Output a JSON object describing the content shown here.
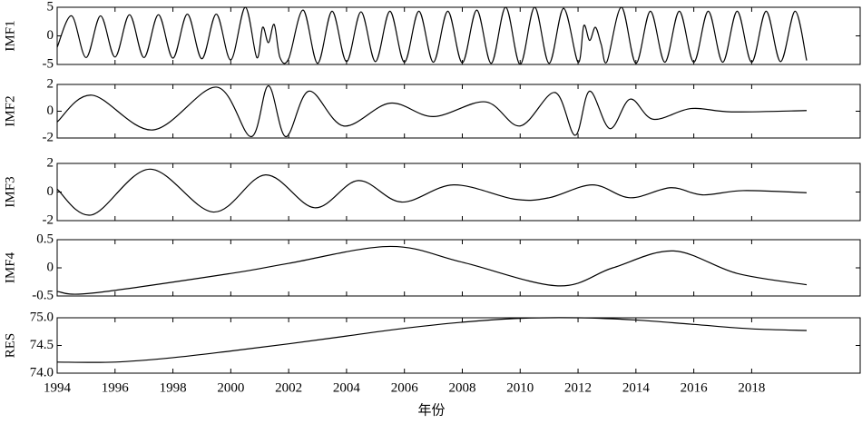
{
  "chart_data": [
    {
      "type": "line",
      "ylabel": "IMF1",
      "ylim": [
        -5,
        5
      ],
      "yticks": [
        -5,
        0,
        5
      ],
      "x": [
        1994,
        1994.5,
        1995,
        1995.5,
        1996,
        1996.5,
        1997,
        1997.5,
        1998,
        1998.5,
        1999,
        1999.5,
        2000,
        2000.5,
        2000.9,
        2001.1,
        2001.3,
        2001.5,
        2001.7,
        2002,
        2002.5,
        2003,
        2003.5,
        2004,
        2004.5,
        2005,
        2005.5,
        2006,
        2006.5,
        2007,
        2007.5,
        2008,
        2008.5,
        2009,
        2009.5,
        2010,
        2010.5,
        2011,
        2011.5,
        2012,
        2012.2,
        2012.4,
        2012.6,
        2012.8,
        2013,
        2013.5,
        2014,
        2014.5,
        2015,
        2015.5,
        2016,
        2016.5,
        2017,
        2017.5,
        2018,
        2018.5,
        2019,
        2019.5,
        2019.9
      ],
      "values": [
        -2,
        3.5,
        -3.8,
        3.5,
        -3.7,
        3.7,
        -3.8,
        3.7,
        -3.9,
        3.8,
        -4,
        3.8,
        -4.2,
        5,
        -3.8,
        1.5,
        -1.2,
        2,
        -3.8,
        -4,
        4.5,
        -4.8,
        4.3,
        -4.5,
        4.2,
        -4.5,
        4.3,
        -4.6,
        4.3,
        -4.6,
        4.3,
        -4.7,
        4.5,
        -4.8,
        5,
        -5,
        5,
        -4.8,
        4.8,
        -4.6,
        1.8,
        -0.8,
        1.5,
        -1.5,
        -4.5,
        5,
        -4.8,
        4.3,
        -4.6,
        4.3,
        -4.6,
        4.3,
        -4.6,
        4.3,
        -4.6,
        4.3,
        -4.5,
        4.3,
        -4.3
      ]
    },
    {
      "type": "line",
      "ylabel": "IMF2",
      "ylim": [
        -2,
        2
      ],
      "yticks": [
        -2,
        0,
        2
      ],
      "x": [
        1994,
        1995.2,
        1997.3,
        1999.5,
        2000.7,
        2001.3,
        2001.9,
        2002.7,
        2003.9,
        2005.5,
        2007,
        2008.8,
        2010,
        2011.2,
        2011.9,
        2012.4,
        2013.1,
        2013.8,
        2014.6,
        2015.9,
        2017.3,
        2019.9
      ],
      "values": [
        -0.8,
        1.2,
        -1.4,
        1.8,
        -1.9,
        1.9,
        -1.9,
        1.5,
        -1.1,
        0.6,
        -0.4,
        0.7,
        -1.1,
        1.4,
        -1.8,
        1.5,
        -1.3,
        0.9,
        -0.6,
        0.2,
        -0.05,
        0.05
      ]
    },
    {
      "type": "line",
      "ylabel": "IMF3",
      "ylim": [
        -2,
        2
      ],
      "yticks": [
        -2,
        0,
        2
      ],
      "x": [
        1994,
        1995.2,
        1997.2,
        1999.4,
        2001.2,
        2002.9,
        2004.4,
        2005.9,
        2007.7,
        2009.8,
        2011,
        2012.5,
        2013.8,
        2015.2,
        2016.3,
        2017.7,
        2019.9
      ],
      "values": [
        0.2,
        -1.6,
        1.6,
        -1.4,
        1.2,
        -1.1,
        0.8,
        -0.7,
        0.5,
        -0.5,
        -0.4,
        0.5,
        -0.4,
        0.3,
        -0.2,
        0.1,
        -0.05
      ]
    },
    {
      "type": "line",
      "ylabel": "IMF4",
      "ylim": [
        -0.5,
        0.5
      ],
      "yticks": [
        -0.5,
        0,
        0.5
      ],
      "x": [
        1994,
        1995.2,
        2000,
        2002,
        2005.5,
        2008,
        2011.3,
        2013.2,
        2015.3,
        2017.5,
        2019.9
      ],
      "values": [
        -0.42,
        -0.45,
        -0.1,
        0.08,
        0.38,
        0.1,
        -0.32,
        0,
        0.3,
        -0.1,
        -0.3
      ]
    },
    {
      "type": "line",
      "ylabel": "RES",
      "xlabel": "年份",
      "ylim": [
        74,
        75
      ],
      "yticks": [
        {
          "value": 74,
          "label": "74.0"
        },
        74.5,
        {
          "value": 75,
          "label": "75.0"
        }
      ],
      "xlim": [
        1994,
        2021.75
      ],
      "xticks": [
        1994,
        1996,
        1998,
        2000,
        2002,
        2004,
        2006,
        2008,
        2010,
        2012,
        2014,
        2016,
        2018
      ],
      "x": [
        1994,
        1996,
        1998,
        2000,
        2002,
        2004,
        2006,
        2008,
        2010,
        2012,
        2014,
        2016,
        2018,
        2019.9
      ],
      "values": [
        74.2,
        74.2,
        74.28,
        74.4,
        74.53,
        74.67,
        74.81,
        74.92,
        74.99,
        75.0,
        74.96,
        74.88,
        74.8,
        74.77
      ]
    }
  ]
}
